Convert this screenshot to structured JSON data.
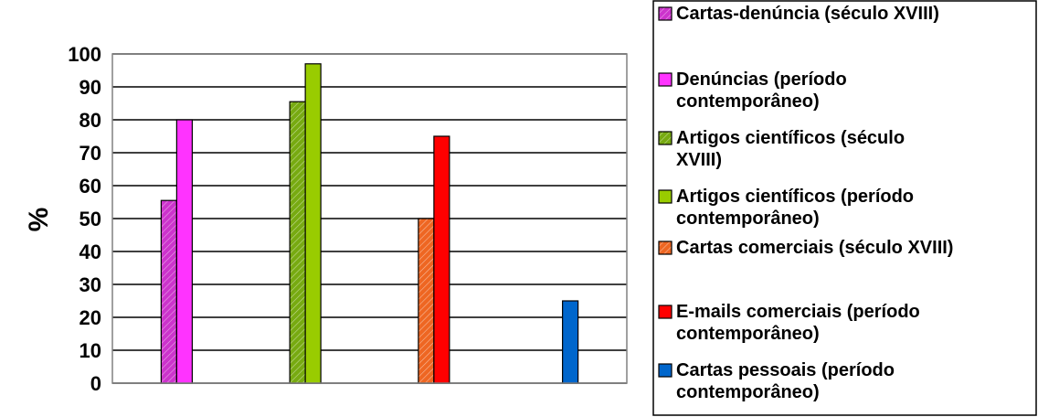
{
  "chart_data": {
    "type": "bar",
    "title": "",
    "xlabel": "",
    "ylabel": "%",
    "ylim": [
      0,
      100
    ],
    "yticks": [
      0,
      10,
      20,
      30,
      40,
      50,
      60,
      70,
      80,
      90,
      100
    ],
    "grid": true,
    "legend_position": "right",
    "groups": 4,
    "series": [
      {
        "name": "Cartas-denúncia (século XVIII)",
        "legend_lines": [
          "Cartas-denúncia (século XVIII)"
        ],
        "group": 0,
        "slot": 0,
        "value": 55.5,
        "color": "#cc33cc",
        "pattern": "hatched"
      },
      {
        "name": "Denúncias (período contemporâneo)",
        "legend_lines": [
          "Denúncias (período",
          "contemporâneo)"
        ],
        "group": 0,
        "slot": 1,
        "value": 80,
        "color": "#ff33ff",
        "pattern": "solid"
      },
      {
        "name": "Artigos científicos (século XVIII)",
        "legend_lines": [
          "Artigos científicos (século",
          "XVIII)"
        ],
        "group": 1,
        "slot": 0,
        "value": 85.5,
        "color": "#77aa11",
        "pattern": "hatched"
      },
      {
        "name": "Artigos científicos (período contemporâneo)",
        "legend_lines": [
          "Artigos científicos (período",
          "contemporâneo)"
        ],
        "group": 1,
        "slot": 1,
        "value": 97,
        "color": "#99cc00",
        "pattern": "solid"
      },
      {
        "name": "Cartas comerciais (século XVIII)",
        "legend_lines": [
          "Cartas comerciais (século XVIII)"
        ],
        "group": 2,
        "slot": 0,
        "value": 50,
        "color": "#ee6622",
        "pattern": "hatched"
      },
      {
        "name": "E-mails comerciais (período contemporâneo)",
        "legend_lines": [
          "E-mails comerciais (período",
          "contemporâneo)"
        ],
        "group": 2,
        "slot": 1,
        "value": 75,
        "color": "#ff0000",
        "pattern": "solid"
      },
      {
        "name": "Cartas pessoais (período contemporâneo)",
        "legend_lines": [
          "Cartas pessoais (período",
          "contemporâneo)"
        ],
        "group": 3,
        "slot": 1,
        "value": 25,
        "color": "#0066cc",
        "pattern": "solid"
      }
    ]
  }
}
